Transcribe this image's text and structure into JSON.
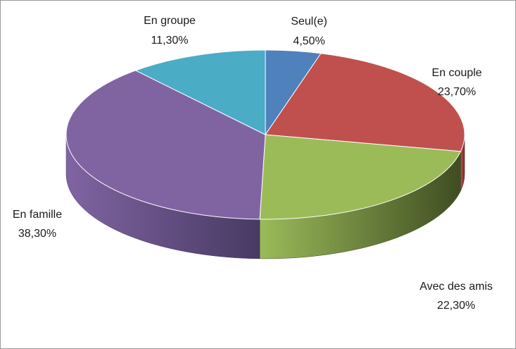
{
  "chart_data": {
    "type": "pie",
    "style": "3d",
    "categories": [
      "Seul(e)",
      "En couple",
      "Avec des amis",
      "En famille",
      "En groupe"
    ],
    "values": [
      4.5,
      23.7,
      22.3,
      38.3,
      11.3
    ],
    "value_labels": [
      "4,50%",
      "23,70%",
      "22,30%",
      "38,30%",
      "11,30%"
    ],
    "colors": [
      "#4f81bd",
      "#c0504d",
      "#9bbb59",
      "#8064a2",
      "#4bacc6"
    ],
    "side_colors": [
      "#2c4d75",
      "#6e2c2a",
      "#3f4d22",
      "#473a63",
      "#2a6676"
    ],
    "title": "",
    "legend": "none"
  }
}
